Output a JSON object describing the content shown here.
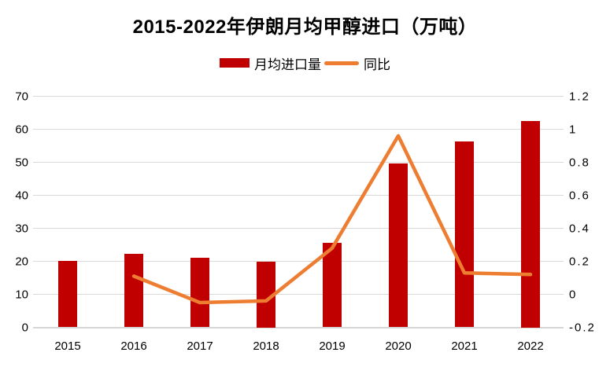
{
  "title": "2015-2022年伊朗月均甲醇进口（万吨）",
  "legend": {
    "bar_label": "月均进口量",
    "line_label": "同比"
  },
  "colors": {
    "bar": "#c00000",
    "line": "#ed7d31",
    "gridline": "#d9d9d9",
    "text": "#000000"
  },
  "chart_data": {
    "type": "bar",
    "title": "2015-2022年伊朗月均甲醇进口（万吨）",
    "categories": [
      "2015",
      "2016",
      "2017",
      "2018",
      "2019",
      "2020",
      "2021",
      "2022"
    ],
    "series": [
      {
        "name": "月均进口量",
        "type": "bar",
        "axis": "left",
        "color": "#c00000",
        "values": [
          20.1,
          22.2,
          21.0,
          20.0,
          25.5,
          49.7,
          56.2,
          62.5
        ]
      },
      {
        "name": "同比",
        "type": "line",
        "axis": "right",
        "color": "#ed7d31",
        "values": [
          null,
          0.11,
          -0.05,
          -0.04,
          0.28,
          0.96,
          0.13,
          0.12
        ]
      }
    ],
    "left_axis": {
      "min": 0,
      "max": 70,
      "ticks": [
        "70",
        "60",
        "50",
        "40",
        "30",
        "20",
        "10",
        "0"
      ]
    },
    "right_axis": {
      "min": -0.2,
      "max": 1.2,
      "ticks": [
        "1.2",
        "1",
        "0.8",
        "0.6",
        "0.4",
        "0.2",
        "0",
        "-0.2"
      ]
    },
    "grid": "horizontal-only",
    "legend_position": "top",
    "xlabel": "",
    "ylabel": ""
  }
}
